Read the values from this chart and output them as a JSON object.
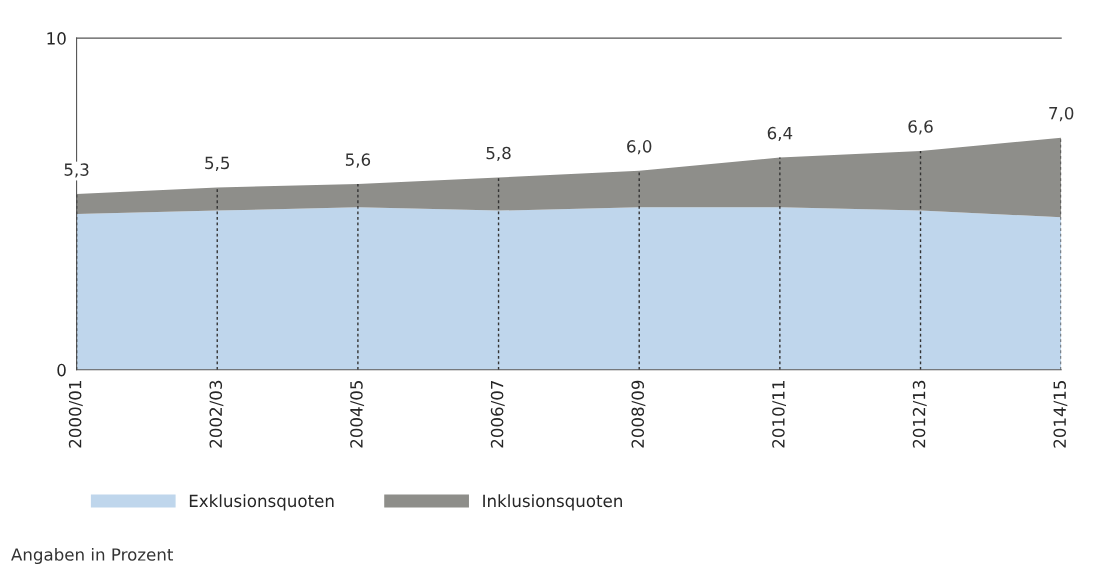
{
  "chart_data": {
    "type": "area",
    "stacked": true,
    "categories": [
      "2000/01",
      "2002/03",
      "2004/05",
      "2006/07",
      "2008/09",
      "2010/11",
      "2012/13",
      "2014/15"
    ],
    "series": [
      {
        "name": "Exklusionsquoten",
        "color": "#bfd6ec",
        "values": [
          4.7,
          4.8,
          4.9,
          4.8,
          4.9,
          4.9,
          4.8,
          4.6
        ]
      },
      {
        "name": "Inklusionsquoten",
        "color": "#8e8e8a",
        "values": [
          0.6,
          0.7,
          0.7,
          1.0,
          1.1,
          1.5,
          1.8,
          2.4
        ]
      }
    ],
    "totals": [
      "5,3",
      "5,5",
      "5,6",
      "5,8",
      "6,0",
      "6,4",
      "6,6",
      "7,0"
    ],
    "ylim": [
      0,
      10
    ],
    "yticks": [
      0,
      10
    ],
    "legend": "bottom",
    "annotations": [
      "Angaben in Prozent"
    ]
  }
}
